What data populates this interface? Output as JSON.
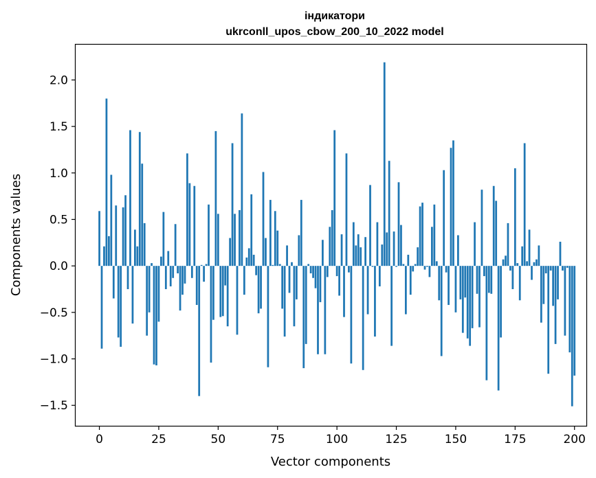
{
  "chart_data": {
    "type": "bar",
    "title": "індикатори",
    "subtitle": "ukrconll_upos_cbow_200_10_2022 model",
    "xlabel": "Vector components",
    "ylabel": "Components values",
    "xlim": [
      -10,
      205
    ],
    "ylim": [
      -1.72,
      2.38
    ],
    "x_ticks": [
      0,
      25,
      50,
      75,
      100,
      125,
      150,
      175,
      200
    ],
    "x_tick_labels": [
      "0",
      "25",
      "50",
      "75",
      "100",
      "125",
      "150",
      "175",
      "200"
    ],
    "y_ticks": [
      -1.5,
      -1.0,
      -0.5,
      0.0,
      0.5,
      1.0,
      1.5,
      2.0
    ],
    "y_tick_labels": [
      "−1.5",
      "−1.0",
      "−0.5",
      "0.0",
      "0.5",
      "1.0",
      "1.5",
      "2.0"
    ],
    "bar_color": "#1f77b4",
    "grid": false,
    "x": "0..199",
    "values": [
      0.59,
      -0.89,
      0.21,
      1.8,
      0.32,
      0.98,
      -0.35,
      0.65,
      -0.77,
      -0.87,
      0.63,
      0.76,
      -0.25,
      1.46,
      -0.62,
      0.39,
      0.21,
      1.44,
      1.1,
      0.46,
      -0.75,
      -0.5,
      0.03,
      -1.06,
      -1.07,
      -0.6,
      0.1,
      0.58,
      -0.25,
      0.16,
      -0.22,
      -0.13,
      0.45,
      -0.08,
      -0.48,
      -0.31,
      -0.19,
      1.21,
      0.89,
      -0.13,
      0.86,
      -0.42,
      -1.4,
      0.01,
      -0.17,
      0.02,
      0.66,
      -1.04,
      -0.58,
      1.45,
      0.56,
      -0.55,
      -0.54,
      -0.21,
      -0.65,
      0.3,
      1.32,
      0.56,
      -0.74,
      0.6,
      1.64,
      -0.31,
      0.09,
      0.19,
      0.77,
      0.12,
      -0.1,
      -0.51,
      -0.46,
      1.01,
      0.3,
      -1.09,
      0.71,
      0.01,
      0.59,
      0.38,
      0.02,
      -0.46,
      -0.76,
      0.22,
      -0.29,
      0.04,
      -0.65,
      -0.36,
      0.33,
      0.71,
      -1.1,
      -0.84,
      0.02,
      -0.08,
      -0.13,
      -0.24,
      -0.95,
      -0.39,
      0.28,
      -0.95,
      -0.12,
      0.42,
      0.6,
      1.46,
      -0.11,
      -0.32,
      0.34,
      -0.55,
      1.21,
      -0.07,
      -1.05,
      0.47,
      0.22,
      0.34,
      0.2,
      -1.12,
      0.31,
      -0.52,
      0.87,
      -0.01,
      -0.76,
      0.47,
      -0.22,
      0.23,
      2.19,
      0.36,
      1.13,
      -0.86,
      0.37,
      -0.01,
      0.9,
      0.44,
      0.02,
      -0.52,
      0.12,
      -0.31,
      -0.06,
      0.02,
      0.2,
      0.64,
      0.68,
      -0.04,
      -0.01,
      -0.12,
      0.42,
      0.66,
      0.05,
      -0.37,
      -0.97,
      1.03,
      -0.07,
      -0.42,
      1.27,
      1.35,
      -0.5,
      0.33,
      -0.36,
      -0.72,
      -0.34,
      -0.78,
      -0.86,
      -0.67,
      0.47,
      -0.3,
      -0.66,
      0.82,
      -0.11,
      -1.23,
      -0.29,
      -0.3,
      0.86,
      0.7,
      -1.34,
      -0.77,
      0.07,
      0.11,
      0.46,
      -0.05,
      -0.25,
      1.05,
      0.03,
      -0.37,
      0.21,
      1.32,
      0.05,
      0.39,
      -0.15,
      0.04,
      0.07,
      0.22,
      -0.61,
      -0.41,
      -0.08,
      -1.16,
      -0.05,
      -0.43,
      -0.84,
      -0.36,
      0.26,
      -0.05,
      -0.75,
      -0.02,
      -0.93,
      -1.51,
      -1.18
    ]
  }
}
